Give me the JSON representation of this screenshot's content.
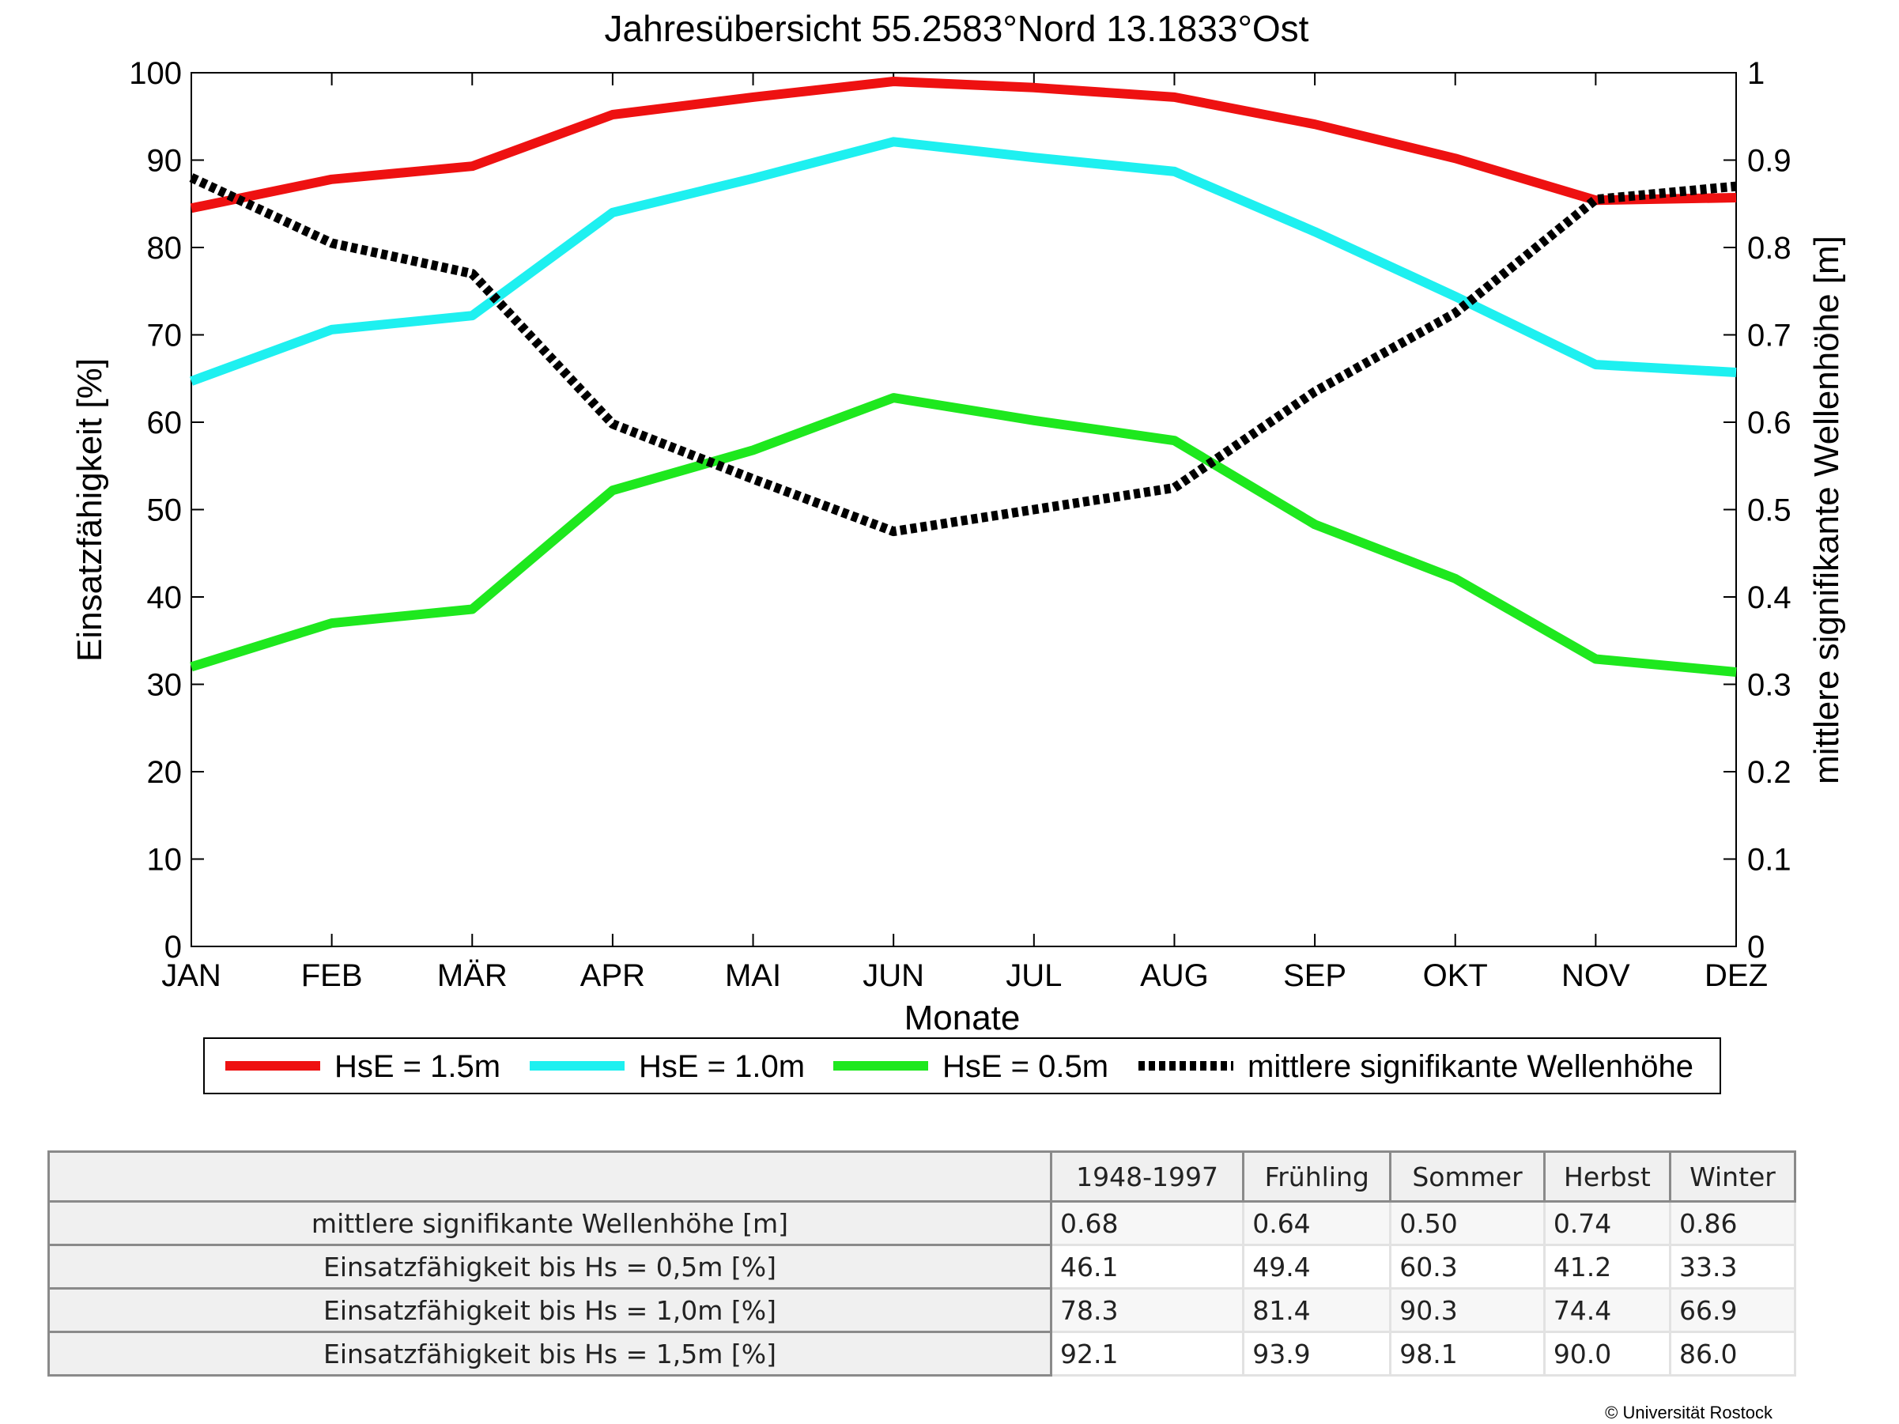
{
  "chart_data": {
    "type": "line",
    "title": "Jahresübersicht  55.2583°Nord  13.1833°Ost",
    "xlabel": "Monate",
    "ylabel": "Einsatzfähigkeit [%]",
    "y2label": "mittlere signifikante Wellenhöhe [m]",
    "categories": [
      "JAN",
      "FEB",
      "MÄR",
      "APR",
      "MAI",
      "JUN",
      "JUL",
      "AUG",
      "SEP",
      "OKT",
      "NOV",
      "DEZ"
    ],
    "ylim": [
      0,
      100
    ],
    "y2lim": [
      0,
      1
    ],
    "yticks": [
      "0",
      "10",
      "20",
      "30",
      "40",
      "50",
      "60",
      "70",
      "80",
      "90",
      "100"
    ],
    "y2ticks": [
      "0",
      "0.1",
      "0.2",
      "0.3",
      "0.4",
      "0.5",
      "0.6",
      "0.7",
      "0.8",
      "0.9",
      "1"
    ],
    "grid": false,
    "legend_position": "bottom",
    "series": [
      {
        "name": "HsE = 1.5m",
        "axis": "left",
        "color": "#ee1111",
        "style": "solid",
        "values": [
          84.5,
          87.8,
          89.3,
          95.2,
          97.2,
          99.0,
          98.3,
          97.2,
          94.1,
          90.2,
          85.4,
          85.7
        ]
      },
      {
        "name": "HsE = 1.0m",
        "axis": "left",
        "color": "#1ef0f0",
        "style": "solid",
        "values": [
          64.7,
          70.6,
          72.2,
          84.0,
          87.9,
          92.1,
          90.3,
          88.7,
          81.8,
          74.4,
          66.6,
          65.7
        ]
      },
      {
        "name": "HsE = 0.5m",
        "axis": "left",
        "color": "#1ee81e",
        "style": "solid",
        "values": [
          32.0,
          37.0,
          38.6,
          52.2,
          56.8,
          62.8,
          60.2,
          57.9,
          48.3,
          42.1,
          32.9,
          31.4
        ]
      },
      {
        "name": "mittlere signifikante Wellenhöhe",
        "axis": "right",
        "color": "#000000",
        "style": "dotted",
        "values": [
          0.88,
          0.805,
          0.77,
          0.598,
          0.535,
          0.475,
          0.5,
          0.525,
          0.635,
          0.725,
          0.855,
          0.87
        ]
      }
    ]
  },
  "table": {
    "headers": [
      "1948-1997",
      "Frühling",
      "Sommer",
      "Herbst",
      "Winter"
    ],
    "rows": [
      {
        "label": "mittlere signifikante Wellenhöhe [m]",
        "values": [
          "0.68",
          "0.64",
          "0.50",
          "0.74",
          "0.86"
        ]
      },
      {
        "label": "Einsatzfähigkeit bis Hs = 0,5m [%]",
        "values": [
          "46.1",
          "49.4",
          "60.3",
          "41.2",
          "33.3"
        ]
      },
      {
        "label": "Einsatzfähigkeit bis Hs = 1,0m [%]",
        "values": [
          "78.3",
          "81.4",
          "90.3",
          "74.4",
          "66.9"
        ]
      },
      {
        "label": "Einsatzfähigkeit bis Hs = 1,5m [%]",
        "values": [
          "92.1",
          "93.9",
          "98.1",
          "90.0",
          "86.0"
        ]
      }
    ]
  },
  "copyright": "© Universität Rostock"
}
